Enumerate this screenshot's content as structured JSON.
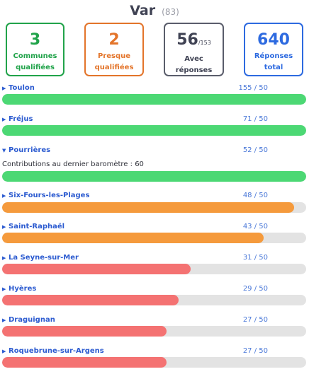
{
  "header": {
    "department": "Var",
    "code": "(83)"
  },
  "cards": {
    "qualified": {
      "value": "3",
      "label_line1": "Communes",
      "label_line2": "qualifiées",
      "color": "#21a34a"
    },
    "almost": {
      "value": "2",
      "label_line1": "Presque",
      "label_line2": "qualifiées",
      "color": "#e3742a"
    },
    "with_responses": {
      "value": "56",
      "total": "/153",
      "label_line1": "Avec",
      "label_line2": "réponses",
      "color": "#3f4253",
      "border": "#5a5d6b"
    },
    "responses": {
      "value": "640",
      "label_line1": "Réponses",
      "label_line2": "total",
      "color": "#2d6ae0"
    }
  },
  "threshold": 50,
  "colors": {
    "qualified": "#4cd874",
    "almost": "#f59a3c",
    "low": "#f47272",
    "track": "#e3e3e3",
    "link": "#2c5bd0"
  },
  "communes": [
    {
      "name": "Toulon",
      "score": "155 / 50",
      "responses": 155,
      "status": "qualified",
      "expanded": false
    },
    {
      "name": "Fréjus",
      "score": "71 / 50",
      "responses": 71,
      "status": "qualified",
      "expanded": false
    },
    {
      "name": "Pourrières",
      "score": "52 / 50",
      "responses": 52,
      "status": "qualified",
      "expanded": true,
      "detail": "Contributions au dernier baromètre : 60"
    },
    {
      "name": "Six-Fours-les-Plages",
      "score": "48 / 50",
      "responses": 48,
      "status": "almost",
      "expanded": false
    },
    {
      "name": "Saint-Raphaël",
      "score": "43 / 50",
      "responses": 43,
      "status": "almost",
      "expanded": false
    },
    {
      "name": "La Seyne-sur-Mer",
      "score": "31 / 50",
      "responses": 31,
      "status": "low",
      "expanded": false
    },
    {
      "name": "Hyères",
      "score": "29 / 50",
      "responses": 29,
      "status": "low",
      "expanded": false
    },
    {
      "name": "Draguignan",
      "score": "27 / 50",
      "responses": 27,
      "status": "low",
      "expanded": false
    },
    {
      "name": "Roquebrune-sur-Argens",
      "score": "27 / 50",
      "responses": 27,
      "status": "low",
      "expanded": false
    }
  ]
}
